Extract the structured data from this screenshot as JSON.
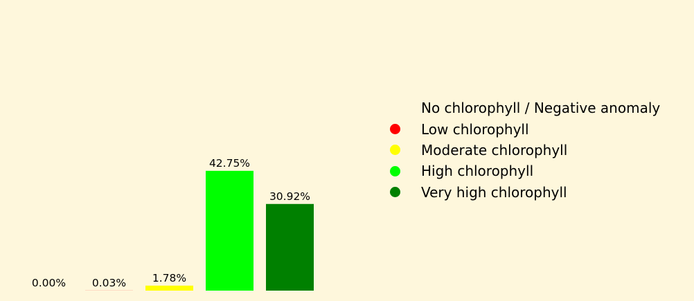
{
  "chart_data": {
    "type": "bar",
    "categories": [
      "No chlorophyll / Negative anomaly",
      "Low chlorophyll",
      "Moderate chlorophyll",
      "High chlorophyll",
      "Very high chlorophyll"
    ],
    "values": [
      0.0,
      0.03,
      1.78,
      42.75,
      30.92
    ],
    "data_labels": [
      "0.00%",
      "0.03%",
      "1.78%",
      "42.75%",
      "30.92%"
    ],
    "colors": [
      "#fef7dc",
      "#ff0000",
      "#ffff00",
      "#00ff00",
      "#008000"
    ],
    "title": "",
    "xlabel": "",
    "ylabel": "",
    "ylim": [
      0,
      50
    ],
    "grid": false,
    "legend_position": "right"
  },
  "background_color": "#fef7dc"
}
